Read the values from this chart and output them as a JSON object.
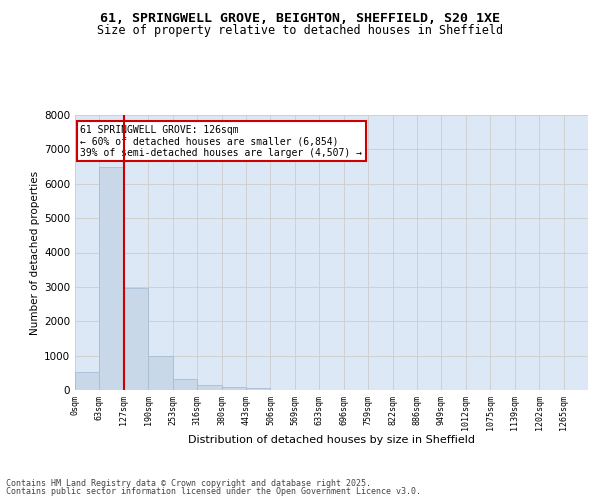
{
  "title_line1": "61, SPRINGWELL GROVE, BEIGHTON, SHEFFIELD, S20 1XE",
  "title_line2": "Size of property relative to detached houses in Sheffield",
  "xlabel": "Distribution of detached houses by size in Sheffield",
  "ylabel": "Number of detached properties",
  "bin_labels": [
    "0sqm",
    "63sqm",
    "127sqm",
    "190sqm",
    "253sqm",
    "316sqm",
    "380sqm",
    "443sqm",
    "506sqm",
    "569sqm",
    "633sqm",
    "696sqm",
    "759sqm",
    "822sqm",
    "886sqm",
    "949sqm",
    "1012sqm",
    "1075sqm",
    "1139sqm",
    "1202sqm",
    "1265sqm"
  ],
  "bar_heights": [
    530,
    6480,
    2970,
    980,
    330,
    145,
    90,
    45,
    0,
    0,
    0,
    0,
    0,
    0,
    0,
    0,
    0,
    0,
    0,
    0
  ],
  "bar_color": "#c8d8e8",
  "bar_edge_color": "#a0b8d0",
  "grid_color": "#cccccc",
  "bg_color": "#dce8f5",
  "red_line_x": 2,
  "annotation_title": "61 SPRINGWELL GROVE: 126sqm",
  "annotation_line2": "← 60% of detached houses are smaller (6,854)",
  "annotation_line3": "39% of semi-detached houses are larger (4,507) →",
  "annotation_box_color": "#cc0000",
  "ylim": [
    0,
    8000
  ],
  "yticks": [
    0,
    1000,
    2000,
    3000,
    4000,
    5000,
    6000,
    7000,
    8000
  ],
  "footer_line1": "Contains HM Land Registry data © Crown copyright and database right 2025.",
  "footer_line2": "Contains public sector information licensed under the Open Government Licence v3.0."
}
